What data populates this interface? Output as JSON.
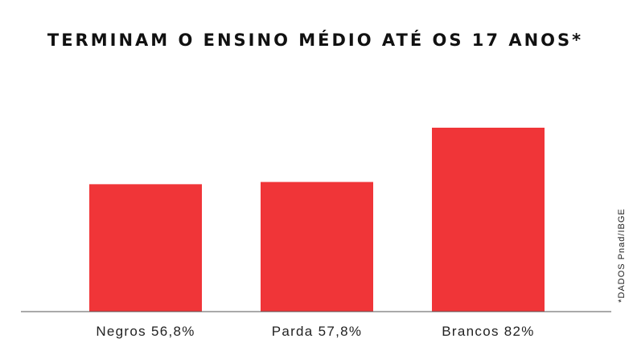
{
  "chart_data": {
    "type": "bar",
    "title": "TERMINAM O ENSINO MÉDIO ATÉ OS 17 ANOS*",
    "categories": [
      "Negros",
      "Parda",
      "Brancos"
    ],
    "category_labels": [
      "Negros 56,8%",
      "Parda 57,8%",
      "Brancos 82%"
    ],
    "values": [
      56.8,
      57.8,
      82
    ],
    "unit": "%",
    "source_note": "*DADOS Pnad/IBGE",
    "bar_color": "#f03538",
    "axis_color": "#555555",
    "grid": false,
    "legend": "none"
  }
}
